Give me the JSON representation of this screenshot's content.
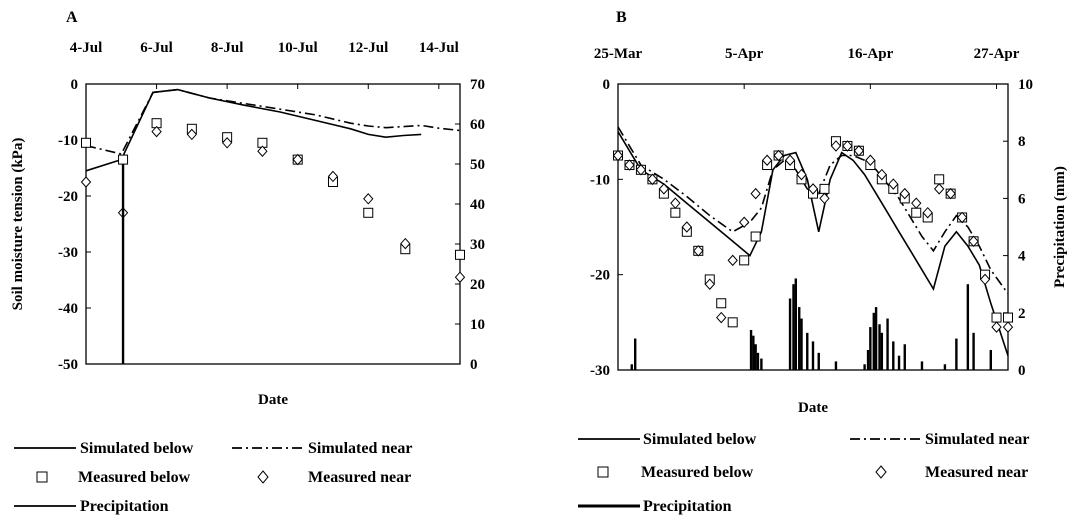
{
  "chart_data": [
    {
      "type": "line",
      "panel_label": "A",
      "x_tick_labels": [
        "4-Jul",
        "6-Jul",
        "8-Jul",
        "10-Jul",
        "12-Jul",
        "14-Jul"
      ],
      "xlabel": "Date",
      "ylabel": "Soil moisture tension (kPa)",
      "ylim": [
        -50,
        0
      ],
      "y_ticks": [
        "0",
        "-10",
        "-20",
        "-30",
        "-40",
        "-50"
      ],
      "y2lim": [
        0,
        70
      ],
      "y2_ticks": [
        "70",
        "60",
        "50",
        "40",
        "30",
        "20",
        "10",
        "0"
      ],
      "y2label": "",
      "xlim": [
        4.0,
        14.6
      ],
      "grid": false,
      "series": [
        {
          "name": "Simulated below",
          "kind": "line",
          "style": "solid",
          "x": [
            4.0,
            5.0,
            5.9,
            6.6,
            7.5,
            8.5,
            9.5,
            10.5,
            11.5,
            12.0,
            12.5,
            13.0,
            13.5
          ],
          "y": [
            -15.5,
            -13.5,
            -1.5,
            -1.0,
            -2.5,
            -3.8,
            -5.0,
            -6.5,
            -8.0,
            -9.0,
            -9.5,
            -9.2,
            -9.0
          ]
        },
        {
          "name": "Simulated near",
          "kind": "line",
          "style": "dashdot",
          "x": [
            4.0,
            5.0,
            5.9,
            6.6,
            7.5,
            8.5,
            9.5,
            10.5,
            11.5,
            12.0,
            12.5,
            13.0,
            13.5,
            14.0,
            14.6
          ],
          "y": [
            -11.0,
            -12.5,
            -1.5,
            -1.0,
            -2.5,
            -3.5,
            -4.5,
            -5.5,
            -7.0,
            -7.5,
            -7.8,
            -7.6,
            -7.4,
            -7.9,
            -8.3
          ]
        },
        {
          "name": "Measured below",
          "kind": "marker",
          "marker": "square",
          "x": [
            4.0,
            5.05,
            6.0,
            7.0,
            8.0,
            9.0,
            10.0,
            11.0,
            12.0,
            13.05,
            14.6
          ],
          "y": [
            -10.5,
            -13.5,
            -7.0,
            -8.0,
            -9.5,
            -10.5,
            -13.5,
            -17.5,
            -23.0,
            -29.5,
            -30.5
          ]
        },
        {
          "name": "Measured near",
          "kind": "marker",
          "marker": "diamond",
          "x": [
            4.0,
            5.05,
            6.0,
            7.0,
            8.0,
            9.0,
            10.0,
            11.0,
            12.0,
            13.05,
            14.6
          ],
          "y": [
            -17.5,
            -23.0,
            -8.5,
            -9.0,
            -10.5,
            -12.0,
            -13.5,
            -16.5,
            -20.5,
            -28.5,
            -34.5
          ]
        },
        {
          "name": "Precipitation",
          "kind": "bars",
          "axis": "y2",
          "x": [
            5.05
          ],
          "y": [
            50
          ]
        }
      ]
    },
    {
      "type": "line",
      "panel_label": "B",
      "x_tick_labels": [
        "25-Mar",
        "5-Apr",
        "16-Apr",
        "27-Apr"
      ],
      "xlabel": "Date",
      "ylabel": "",
      "ylim": [
        -30,
        0
      ],
      "y_ticks": [
        "0",
        "-10",
        "-20",
        "-30"
      ],
      "y2lim": [
        0,
        10
      ],
      "y2_ticks": [
        "10",
        "8",
        "6",
        "4",
        "2",
        "0"
      ],
      "y2label": "Precipitation (mm)",
      "xlim": [
        0,
        34
      ],
      "grid": false,
      "series": [
        {
          "name": "Simulated below",
          "kind": "line",
          "style": "solid",
          "x": [
            0,
            2,
            4,
            6,
            8,
            10,
            11.5,
            12.5,
            13.5,
            14.5,
            15.5,
            16.5,
            17.5,
            18.5,
            19.5,
            20.5,
            21.5,
            22.5,
            23.5,
            24.5,
            25.5,
            26.5,
            27.5,
            28.5,
            29.5,
            30.5,
            31.5,
            32.5,
            34
          ],
          "y": [
            -5.0,
            -9.0,
            -10.5,
            -12.5,
            -14.5,
            -16.5,
            -18.0,
            -15.5,
            -9.0,
            -7.5,
            -7.2,
            -10.0,
            -15.5,
            -10.0,
            -7.2,
            -8.0,
            -9.5,
            -11.5,
            -13.5,
            -15.5,
            -17.5,
            -19.5,
            -21.5,
            -17.0,
            -15.5,
            -17.0,
            -19.0,
            -23.0,
            -28.5
          ]
        },
        {
          "name": "Simulated near",
          "kind": "line",
          "style": "dashdot",
          "x": [
            0,
            2,
            4,
            6,
            8,
            10,
            11.5,
            12.5,
            13.5,
            14.5,
            15.5,
            16.5,
            17.5,
            18.5,
            19.5,
            20.5,
            21.5,
            22.5,
            23.5,
            24.5,
            25.5,
            26.5,
            27.5,
            28.5,
            29.5,
            30.5,
            31.5,
            32.5,
            34
          ],
          "y": [
            -4.5,
            -8.5,
            -10.0,
            -11.8,
            -13.8,
            -15.5,
            -14.5,
            -13.0,
            -9.0,
            -8.0,
            -9.0,
            -11.0,
            -11.5,
            -8.5,
            -7.5,
            -7.5,
            -8.0,
            -9.0,
            -10.5,
            -12.0,
            -14.0,
            -16.0,
            -17.5,
            -15.5,
            -13.8,
            -15.0,
            -17.0,
            -19.5,
            -22.0
          ]
        },
        {
          "name": "Measured below",
          "kind": "marker",
          "marker": "square",
          "x": [
            0,
            1,
            2,
            3,
            4,
            5,
            6,
            7,
            8,
            9,
            10,
            11,
            12,
            13,
            14,
            15,
            16,
            17,
            18,
            19,
            20,
            21,
            22,
            23,
            24,
            25,
            26,
            27,
            28,
            29,
            30,
            31,
            32,
            33,
            34
          ],
          "y": [
            -7.5,
            -8.5,
            -9.0,
            -10.0,
            -11.5,
            -13.5,
            -15.5,
            -17.5,
            -20.5,
            -23.0,
            -25.0,
            -18.5,
            -16.0,
            -8.5,
            -7.5,
            -8.5,
            -10.0,
            -11.5,
            -11.0,
            -6.0,
            -6.5,
            -7.0,
            -8.5,
            -10.0,
            -11.0,
            -12.0,
            -13.5,
            -14.0,
            -10.0,
            -11.5,
            -14.0,
            -16.5,
            -20.0,
            -24.5,
            -24.5
          ]
        },
        {
          "name": "Measured near",
          "kind": "marker",
          "marker": "diamond",
          "x": [
            0,
            1,
            2,
            3,
            4,
            5,
            6,
            7,
            8,
            9,
            10,
            11,
            12,
            13,
            14,
            15,
            16,
            17,
            18,
            19,
            20,
            21,
            22,
            23,
            24,
            25,
            26,
            27,
            28,
            29,
            30,
            31,
            32,
            33,
            34
          ],
          "y": [
            -7.5,
            -8.5,
            -9.0,
            -10.0,
            -11.0,
            -12.5,
            -15.0,
            -17.5,
            -21.0,
            -24.5,
            -18.5,
            -14.5,
            -11.5,
            -8.0,
            -7.5,
            -8.0,
            -9.5,
            -11.0,
            -12.0,
            -6.5,
            -6.5,
            -7.0,
            -8.0,
            -9.5,
            -10.5,
            -11.5,
            -12.5,
            -13.5,
            -11.0,
            -11.5,
            -14.0,
            -16.5,
            -20.5,
            -25.5,
            -25.5
          ]
        },
        {
          "name": "Precipitation",
          "kind": "bars",
          "axis": "y2",
          "x": [
            1.2,
            1.5,
            11.6,
            11.8,
            12.0,
            12.2,
            12.5,
            15.0,
            15.3,
            15.5,
            15.8,
            16.0,
            16.5,
            17.0,
            17.5,
            19.0,
            21.5,
            21.8,
            22.0,
            22.3,
            22.5,
            22.8,
            23.0,
            23.5,
            24.0,
            24.5,
            25.0,
            26.5,
            28.5,
            29.5,
            30.5,
            31.0,
            32.5
          ],
          "y": [
            0.2,
            1.1,
            1.4,
            1.2,
            0.9,
            0.6,
            0.4,
            2.5,
            3.0,
            3.2,
            2.2,
            1.8,
            1.3,
            1.0,
            0.6,
            0.3,
            0.2,
            0.7,
            1.5,
            2.0,
            2.2,
            1.6,
            1.3,
            1.8,
            1.0,
            0.5,
            0.9,
            0.3,
            0.2,
            1.1,
            3.0,
            1.3,
            0.7
          ]
        }
      ]
    }
  ],
  "legends": [
    {
      "items": [
        "Simulated below",
        "Simulated near",
        "Measured below",
        "Measured near",
        "Precipitation"
      ]
    },
    {
      "items": [
        "Simulated below",
        "Simulated near",
        "Measured below",
        "Measured near",
        "Precipitation"
      ]
    }
  ]
}
